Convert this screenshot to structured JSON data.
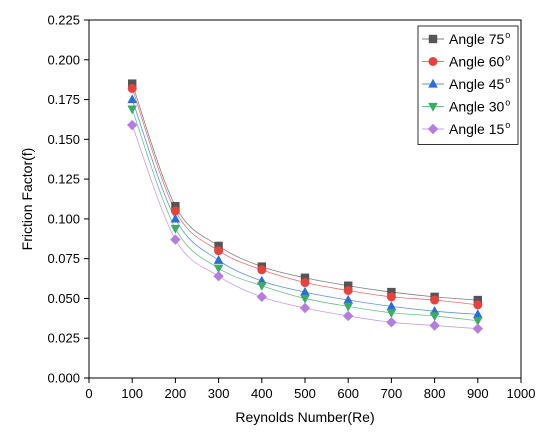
{
  "chart_data": {
    "type": "scatter",
    "title": "",
    "xlabel": "Reynolds Number(Re)",
    "ylabel": "Friction Factor(f)",
    "xlim": [
      0,
      1000
    ],
    "ylim": [
      0,
      0.225
    ],
    "xticks": [
      0,
      100,
      200,
      300,
      400,
      500,
      600,
      700,
      800,
      900,
      1000
    ],
    "xtick_labels": [
      "0",
      "100",
      "200",
      "300",
      "400",
      "500",
      "600",
      "700",
      "800",
      "900",
      "1000"
    ],
    "yticks": [
      0,
      0.025,
      0.05,
      0.075,
      0.1,
      0.125,
      0.15,
      0.175,
      0.2,
      0.225
    ],
    "ytick_labels": [
      "0.000",
      "0.025",
      "0.050",
      "0.075",
      "0.100",
      "0.125",
      "0.150",
      "0.175",
      "0.200",
      "0.225"
    ],
    "grid": false,
    "legend_position": "top-right",
    "fit_curves": true,
    "x": [
      100,
      200,
      300,
      400,
      500,
      600,
      700,
      800,
      900
    ],
    "series": [
      {
        "name": "Angle 75",
        "name_sup": "o",
        "marker": "square",
        "color": "#555555",
        "values": [
          0.185,
          0.108,
          0.083,
          0.07,
          0.063,
          0.058,
          0.054,
          0.051,
          0.049
        ]
      },
      {
        "name": "Angle 60",
        "name_sup": "o",
        "marker": "circle",
        "color": "#e8423f",
        "values": [
          0.182,
          0.105,
          0.08,
          0.068,
          0.06,
          0.055,
          0.051,
          0.049,
          0.046
        ]
      },
      {
        "name": "Angle 45",
        "name_sup": "o",
        "marker": "triangle-up",
        "color": "#2a6fd6",
        "values": [
          0.175,
          0.1,
          0.074,
          0.061,
          0.054,
          0.049,
          0.045,
          0.042,
          0.04
        ]
      },
      {
        "name": "Angle 30",
        "name_sup": "o",
        "marker": "triangle-down",
        "color": "#3cab63",
        "values": [
          0.169,
          0.094,
          0.069,
          0.058,
          0.05,
          0.045,
          0.041,
          0.039,
          0.036
        ]
      },
      {
        "name": "Angle 15",
        "name_sup": "o",
        "marker": "diamond",
        "color": "#b57de0",
        "values": [
          0.159,
          0.087,
          0.064,
          0.051,
          0.044,
          0.039,
          0.035,
          0.033,
          0.031
        ]
      }
    ]
  }
}
